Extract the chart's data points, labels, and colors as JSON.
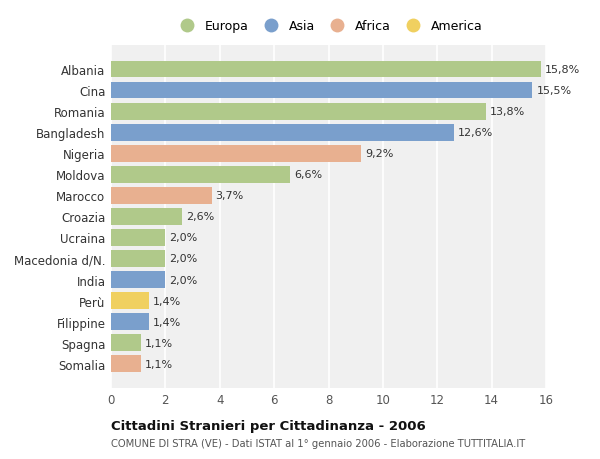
{
  "countries": [
    "Albania",
    "Cina",
    "Romania",
    "Bangladesh",
    "Nigeria",
    "Moldova",
    "Marocco",
    "Croazia",
    "Ucraina",
    "Macedonia d/N.",
    "India",
    "Perù",
    "Filippine",
    "Spagna",
    "Somalia"
  ],
  "values": [
    15.8,
    15.5,
    13.8,
    12.6,
    9.2,
    6.6,
    3.7,
    2.6,
    2.0,
    2.0,
    2.0,
    1.4,
    1.4,
    1.1,
    1.1
  ],
  "regions": [
    "Europa",
    "Asia",
    "Europa",
    "Asia",
    "Africa",
    "Europa",
    "Africa",
    "Europa",
    "Europa",
    "Europa",
    "Asia",
    "America",
    "Asia",
    "Europa",
    "Africa"
  ],
  "region_colors": {
    "Europa": "#b0c98a",
    "Asia": "#7a9fcc",
    "Africa": "#e8b090",
    "America": "#f0d060"
  },
  "legend_order": [
    "Europa",
    "Asia",
    "Africa",
    "America"
  ],
  "title": "Cittadini Stranieri per Cittadinanza - 2006",
  "subtitle": "COMUNE DI STRA (VE) - Dati ISTAT al 1° gennaio 2006 - Elaborazione TUTTITALIA.IT",
  "xlim": [
    0,
    16
  ],
  "xticks": [
    0,
    2,
    4,
    6,
    8,
    10,
    12,
    14,
    16
  ],
  "background_color": "#ffffff",
  "bar_area_color": "#f0f0f0",
  "grid_color": "#ffffff"
}
